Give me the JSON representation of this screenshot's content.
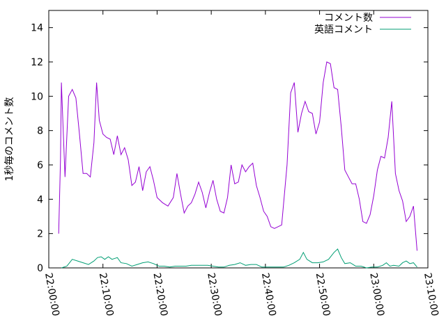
{
  "chart_data": {
    "type": "line",
    "title": "",
    "xlabel": "",
    "ylabel": "1秒毎のコメント数",
    "x_axis": {
      "ticks": [
        "22:00:00",
        "22:10:00",
        "22:20:00",
        "22:30:00",
        "22:40:00",
        "22:50:00",
        "23:00:00",
        "23:10:00"
      ],
      "range": [
        "22:00:00",
        "23:10:00"
      ],
      "label_rotation": "vertical"
    },
    "y_axis": {
      "range": [
        0,
        15
      ],
      "ticks": [
        "0",
        "2",
        "4",
        "6",
        "8",
        "10",
        "12",
        "14"
      ]
    },
    "grid": false,
    "legend": {
      "position": "top-right",
      "entries": [
        "コメント数",
        "英語コメント"
      ]
    },
    "series": [
      {
        "name": "コメント数",
        "color": "#9400d3",
        "points": [
          [
            "22:01:50",
            2.0
          ],
          [
            "22:02:10",
            6.3
          ],
          [
            "22:02:20",
            10.8
          ],
          [
            "22:02:40",
            8.0
          ],
          [
            "22:03:00",
            5.3
          ],
          [
            "22:03:40",
            10.0
          ],
          [
            "22:04:20",
            10.4
          ],
          [
            "22:05:00",
            9.9
          ],
          [
            "22:05:40",
            7.8
          ],
          [
            "22:06:20",
            5.5
          ],
          [
            "22:07:00",
            5.5
          ],
          [
            "22:07:40",
            5.3
          ],
          [
            "22:08:20",
            7.3
          ],
          [
            "22:08:50",
            10.8
          ],
          [
            "22:09:20",
            8.6
          ],
          [
            "22:10:00",
            7.8
          ],
          [
            "22:10:40",
            7.6
          ],
          [
            "22:11:20",
            7.5
          ],
          [
            "22:12:00",
            6.6
          ],
          [
            "22:12:40",
            7.7
          ],
          [
            "22:13:20",
            6.6
          ],
          [
            "22:14:00",
            7.0
          ],
          [
            "22:14:40",
            6.3
          ],
          [
            "22:15:20",
            4.8
          ],
          [
            "22:16:00",
            5.0
          ],
          [
            "22:16:40",
            5.9
          ],
          [
            "22:17:20",
            4.5
          ],
          [
            "22:18:00",
            5.6
          ],
          [
            "22:18:40",
            5.9
          ],
          [
            "22:19:20",
            5.1
          ],
          [
            "22:20:00",
            4.1
          ],
          [
            "22:21:00",
            3.8
          ],
          [
            "22:22:00",
            3.6
          ],
          [
            "22:23:00",
            4.1
          ],
          [
            "22:23:40",
            5.5
          ],
          [
            "22:24:20",
            4.3
          ],
          [
            "22:25:00",
            3.2
          ],
          [
            "22:25:40",
            3.6
          ],
          [
            "22:26:20",
            3.8
          ],
          [
            "22:27:00",
            4.3
          ],
          [
            "22:27:40",
            5.0
          ],
          [
            "22:28:20",
            4.4
          ],
          [
            "22:29:00",
            3.5
          ],
          [
            "22:29:40",
            4.4
          ],
          [
            "22:30:20",
            5.1
          ],
          [
            "22:31:00",
            4.0
          ],
          [
            "22:31:40",
            3.3
          ],
          [
            "22:32:20",
            3.2
          ],
          [
            "22:33:00",
            4.1
          ],
          [
            "22:33:40",
            6.0
          ],
          [
            "22:34:20",
            4.9
          ],
          [
            "22:35:00",
            5.0
          ],
          [
            "22:35:40",
            6.0
          ],
          [
            "22:36:20",
            5.6
          ],
          [
            "22:37:00",
            5.9
          ],
          [
            "22:37:40",
            6.1
          ],
          [
            "22:38:20",
            4.8
          ],
          [
            "22:39:00",
            4.1
          ],
          [
            "22:39:40",
            3.3
          ],
          [
            "22:40:20",
            3.0
          ],
          [
            "22:41:00",
            2.4
          ],
          [
            "22:41:40",
            2.3
          ],
          [
            "22:42:20",
            2.4
          ],
          [
            "22:43:00",
            2.5
          ],
          [
            "22:44:00",
            6.0
          ],
          [
            "22:44:40",
            10.2
          ],
          [
            "22:45:20",
            10.8
          ],
          [
            "22:46:00",
            7.9
          ],
          [
            "22:46:40",
            9.0
          ],
          [
            "22:47:20",
            9.7
          ],
          [
            "22:48:00",
            9.1
          ],
          [
            "22:48:40",
            9.0
          ],
          [
            "22:49:20",
            7.8
          ],
          [
            "22:50:00",
            8.5
          ],
          [
            "22:50:40",
            10.8
          ],
          [
            "22:51:20",
            12.0
          ],
          [
            "22:52:00",
            11.9
          ],
          [
            "22:52:40",
            10.5
          ],
          [
            "22:53:20",
            10.4
          ],
          [
            "22:54:00",
            8.2
          ],
          [
            "22:54:40",
            5.7
          ],
          [
            "22:55:20",
            5.3
          ],
          [
            "22:56:00",
            4.9
          ],
          [
            "22:56:40",
            4.9
          ],
          [
            "22:57:20",
            4.0
          ],
          [
            "22:58:00",
            2.7
          ],
          [
            "22:58:40",
            2.6
          ],
          [
            "22:59:20",
            3.1
          ],
          [
            "23:00:00",
            4.2
          ],
          [
            "23:00:40",
            5.7
          ],
          [
            "23:01:20",
            6.5
          ],
          [
            "23:02:00",
            6.4
          ],
          [
            "23:02:40",
            7.6
          ],
          [
            "23:03:20",
            9.7
          ],
          [
            "23:04:00",
            5.5
          ],
          [
            "23:04:40",
            4.5
          ],
          [
            "23:05:20",
            3.9
          ],
          [
            "23:06:00",
            2.7
          ],
          [
            "23:06:40",
            3.0
          ],
          [
            "23:07:20",
            3.6
          ],
          [
            "23:08:00",
            1.0
          ]
        ]
      },
      {
        "name": "英語コメント",
        "color": "#009e73",
        "points": [
          [
            "22:02:20",
            0.0
          ],
          [
            "22:03:20",
            0.1
          ],
          [
            "22:04:20",
            0.5
          ],
          [
            "22:05:20",
            0.4
          ],
          [
            "22:06:20",
            0.3
          ],
          [
            "22:07:20",
            0.2
          ],
          [
            "22:08:20",
            0.4
          ],
          [
            "22:09:00",
            0.6
          ],
          [
            "22:09:40",
            0.65
          ],
          [
            "22:10:20",
            0.5
          ],
          [
            "22:11:00",
            0.65
          ],
          [
            "22:11:40",
            0.5
          ],
          [
            "22:12:40",
            0.6
          ],
          [
            "22:13:20",
            0.3
          ],
          [
            "22:14:20",
            0.25
          ],
          [
            "22:15:20",
            0.1
          ],
          [
            "22:16:20",
            0.2
          ],
          [
            "22:17:20",
            0.3
          ],
          [
            "22:18:20",
            0.35
          ],
          [
            "22:19:20",
            0.25
          ],
          [
            "22:20:20",
            0.1
          ],
          [
            "22:21:20",
            0.1
          ],
          [
            "22:22:20",
            0.05
          ],
          [
            "22:23:20",
            0.1
          ],
          [
            "22:24:20",
            0.1
          ],
          [
            "22:25:20",
            0.1
          ],
          [
            "22:26:20",
            0.15
          ],
          [
            "22:27:20",
            0.15
          ],
          [
            "22:28:20",
            0.15
          ],
          [
            "22:29:20",
            0.15
          ],
          [
            "22:30:20",
            0.1
          ],
          [
            "22:31:20",
            0.05
          ],
          [
            "22:32:20",
            0.05
          ],
          [
            "22:33:20",
            0.15
          ],
          [
            "22:34:20",
            0.2
          ],
          [
            "22:35:20",
            0.3
          ],
          [
            "22:36:20",
            0.15
          ],
          [
            "22:37:20",
            0.2
          ],
          [
            "22:38:20",
            0.2
          ],
          [
            "22:39:20",
            0.05
          ],
          [
            "22:40:20",
            0.05
          ],
          [
            "22:41:20",
            0.05
          ],
          [
            "22:42:20",
            0.05
          ],
          [
            "22:43:20",
            0.05
          ],
          [
            "22:44:20",
            0.15
          ],
          [
            "22:45:20",
            0.3
          ],
          [
            "22:46:20",
            0.5
          ],
          [
            "22:47:00",
            0.9
          ],
          [
            "22:47:40",
            0.5
          ],
          [
            "22:48:40",
            0.3
          ],
          [
            "22:49:40",
            0.3
          ],
          [
            "22:50:40",
            0.35
          ],
          [
            "22:51:40",
            0.5
          ],
          [
            "22:52:40",
            0.9
          ],
          [
            "22:53:20",
            1.1
          ],
          [
            "22:54:00",
            0.6
          ],
          [
            "22:54:40",
            0.25
          ],
          [
            "22:55:40",
            0.3
          ],
          [
            "22:56:40",
            0.1
          ],
          [
            "22:57:40",
            0.1
          ],
          [
            "22:58:40",
            0.0
          ],
          [
            "22:59:40",
            0.05
          ],
          [
            "23:00:40",
            0.05
          ],
          [
            "23:01:40",
            0.15
          ],
          [
            "23:02:20",
            0.3
          ],
          [
            "23:03:00",
            0.1
          ],
          [
            "23:03:40",
            0.15
          ],
          [
            "23:04:40",
            0.1
          ],
          [
            "23:05:20",
            0.3
          ],
          [
            "23:06:00",
            0.4
          ],
          [
            "23:06:40",
            0.25
          ],
          [
            "23:07:20",
            0.3
          ],
          [
            "23:08:00",
            0.05
          ]
        ]
      }
    ]
  }
}
